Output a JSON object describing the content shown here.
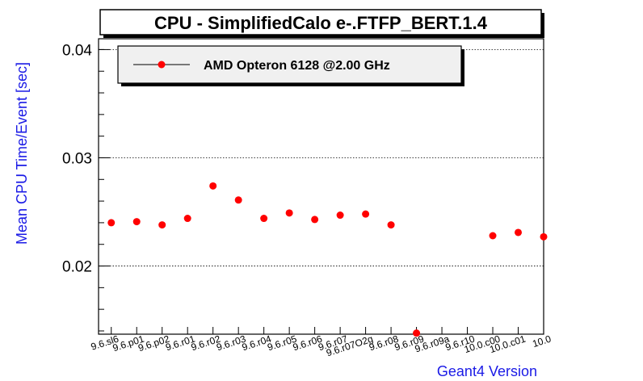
{
  "chart_data": {
    "type": "scatter",
    "title": "CPU - SimplifiedCalo e-.FTFP_BERT.1.4",
    "xlabel": "Geant4 Version",
    "ylabel": "Mean CPU Time/Event [sec]",
    "ylim": [
      0.0137,
      0.041
    ],
    "yticks": [
      "0.02",
      "0.03",
      "0.04"
    ],
    "yticks_values": [
      0.02,
      0.03,
      0.04
    ],
    "grid": true,
    "legend_position": "top-left",
    "categories": [
      "9.6.sl6",
      "9.6.p01",
      "9.6.p02",
      "9.6.r01",
      "9.6.r02",
      "9.6.r03",
      "9.6.r04",
      "9.6.r05",
      "9.6.r06",
      "9.6.r07",
      "9.6.r07O2g",
      "9.6.r08",
      "9.6.r09",
      "9.6.r09a",
      "9.6.r10",
      "10.0.c00",
      "10.0.c01",
      "10.0"
    ],
    "series": [
      {
        "name": "AMD Opteron 6128 @2.00 GHz",
        "color": "#ff0000",
        "values": [
          0.024,
          0.0241,
          0.0238,
          0.0244,
          0.0274,
          0.0261,
          0.0244,
          0.0249,
          0.0243,
          0.0247,
          0.0248,
          0.0238,
          0.0138,
          null,
          null,
          0.0228,
          0.0231,
          0.0227
        ]
      }
    ]
  }
}
